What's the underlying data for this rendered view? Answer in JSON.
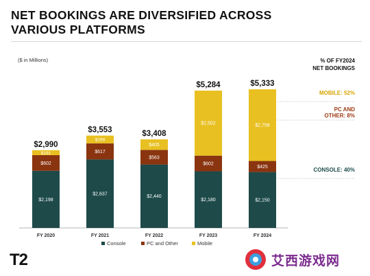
{
  "page": {
    "title_line1": "NET BOOKINGS ARE DIVERSIFIED ACROSS",
    "title_line2": "VARIOUS PLATFORMS",
    "units_note": "($ in Millions)",
    "logo_text": "T2",
    "watermark_text": "艾西游戏网"
  },
  "chart_data": {
    "type": "bar",
    "stacked": true,
    "title": "NET BOOKINGS ARE DIVERSIFIED ACROSS VARIOUS PLATFORMS",
    "ylabel": "($ in Millions)",
    "categories": [
      "FY 2020",
      "FY 2021",
      "FY 2022",
      "FY 2023",
      "FY 2024"
    ],
    "totals": [
      "$2,990",
      "$3,553",
      "$3,408",
      "$5,284",
      "$5,333"
    ],
    "total_values": [
      2990,
      3553,
      3408,
      5284,
      5333
    ],
    "ylim": [
      0,
      5600
    ],
    "grid": false,
    "legend_position": "bottom",
    "series": [
      {
        "name": "Console",
        "color": "#1e4a4a",
        "label_color": "#ffffff",
        "values": [
          2198,
          2637,
          2440,
          2180,
          2150
        ],
        "labels": [
          "$2,198",
          "$2,637",
          "$2,440",
          "$2,180",
          "$2,150"
        ]
      },
      {
        "name": "PC and Other",
        "color": "#8a3410",
        "label_color": "#ffffff",
        "values": [
          602,
          617,
          563,
          602,
          425
        ],
        "labels": [
          "$602",
          "$617",
          "$563",
          "$602",
          "$425"
        ]
      },
      {
        "name": "Mobile",
        "color": "#e8c021",
        "label_color": "#ffffff",
        "values": [
          191,
          299,
          405,
          2502,
          2758
        ],
        "labels": [
          "$191",
          "$299",
          "$405",
          "$2,502",
          "$2,758"
        ]
      }
    ],
    "share_panel": {
      "title_line1": "% OF FY2024",
      "title_line2": "NET BOOKINGS",
      "items": [
        {
          "line1": "MOBILE: 52%",
          "line2": "",
          "color": "#d9a400",
          "series_index": 2
        },
        {
          "line1": "PC AND",
          "line2": "OTHER: 8%",
          "color": "#9c3a14",
          "series_index": 1
        },
        {
          "line1": "CONSOLE: 40%",
          "line2": "",
          "color": "#1e4a4a",
          "series_index": 0
        }
      ]
    }
  }
}
